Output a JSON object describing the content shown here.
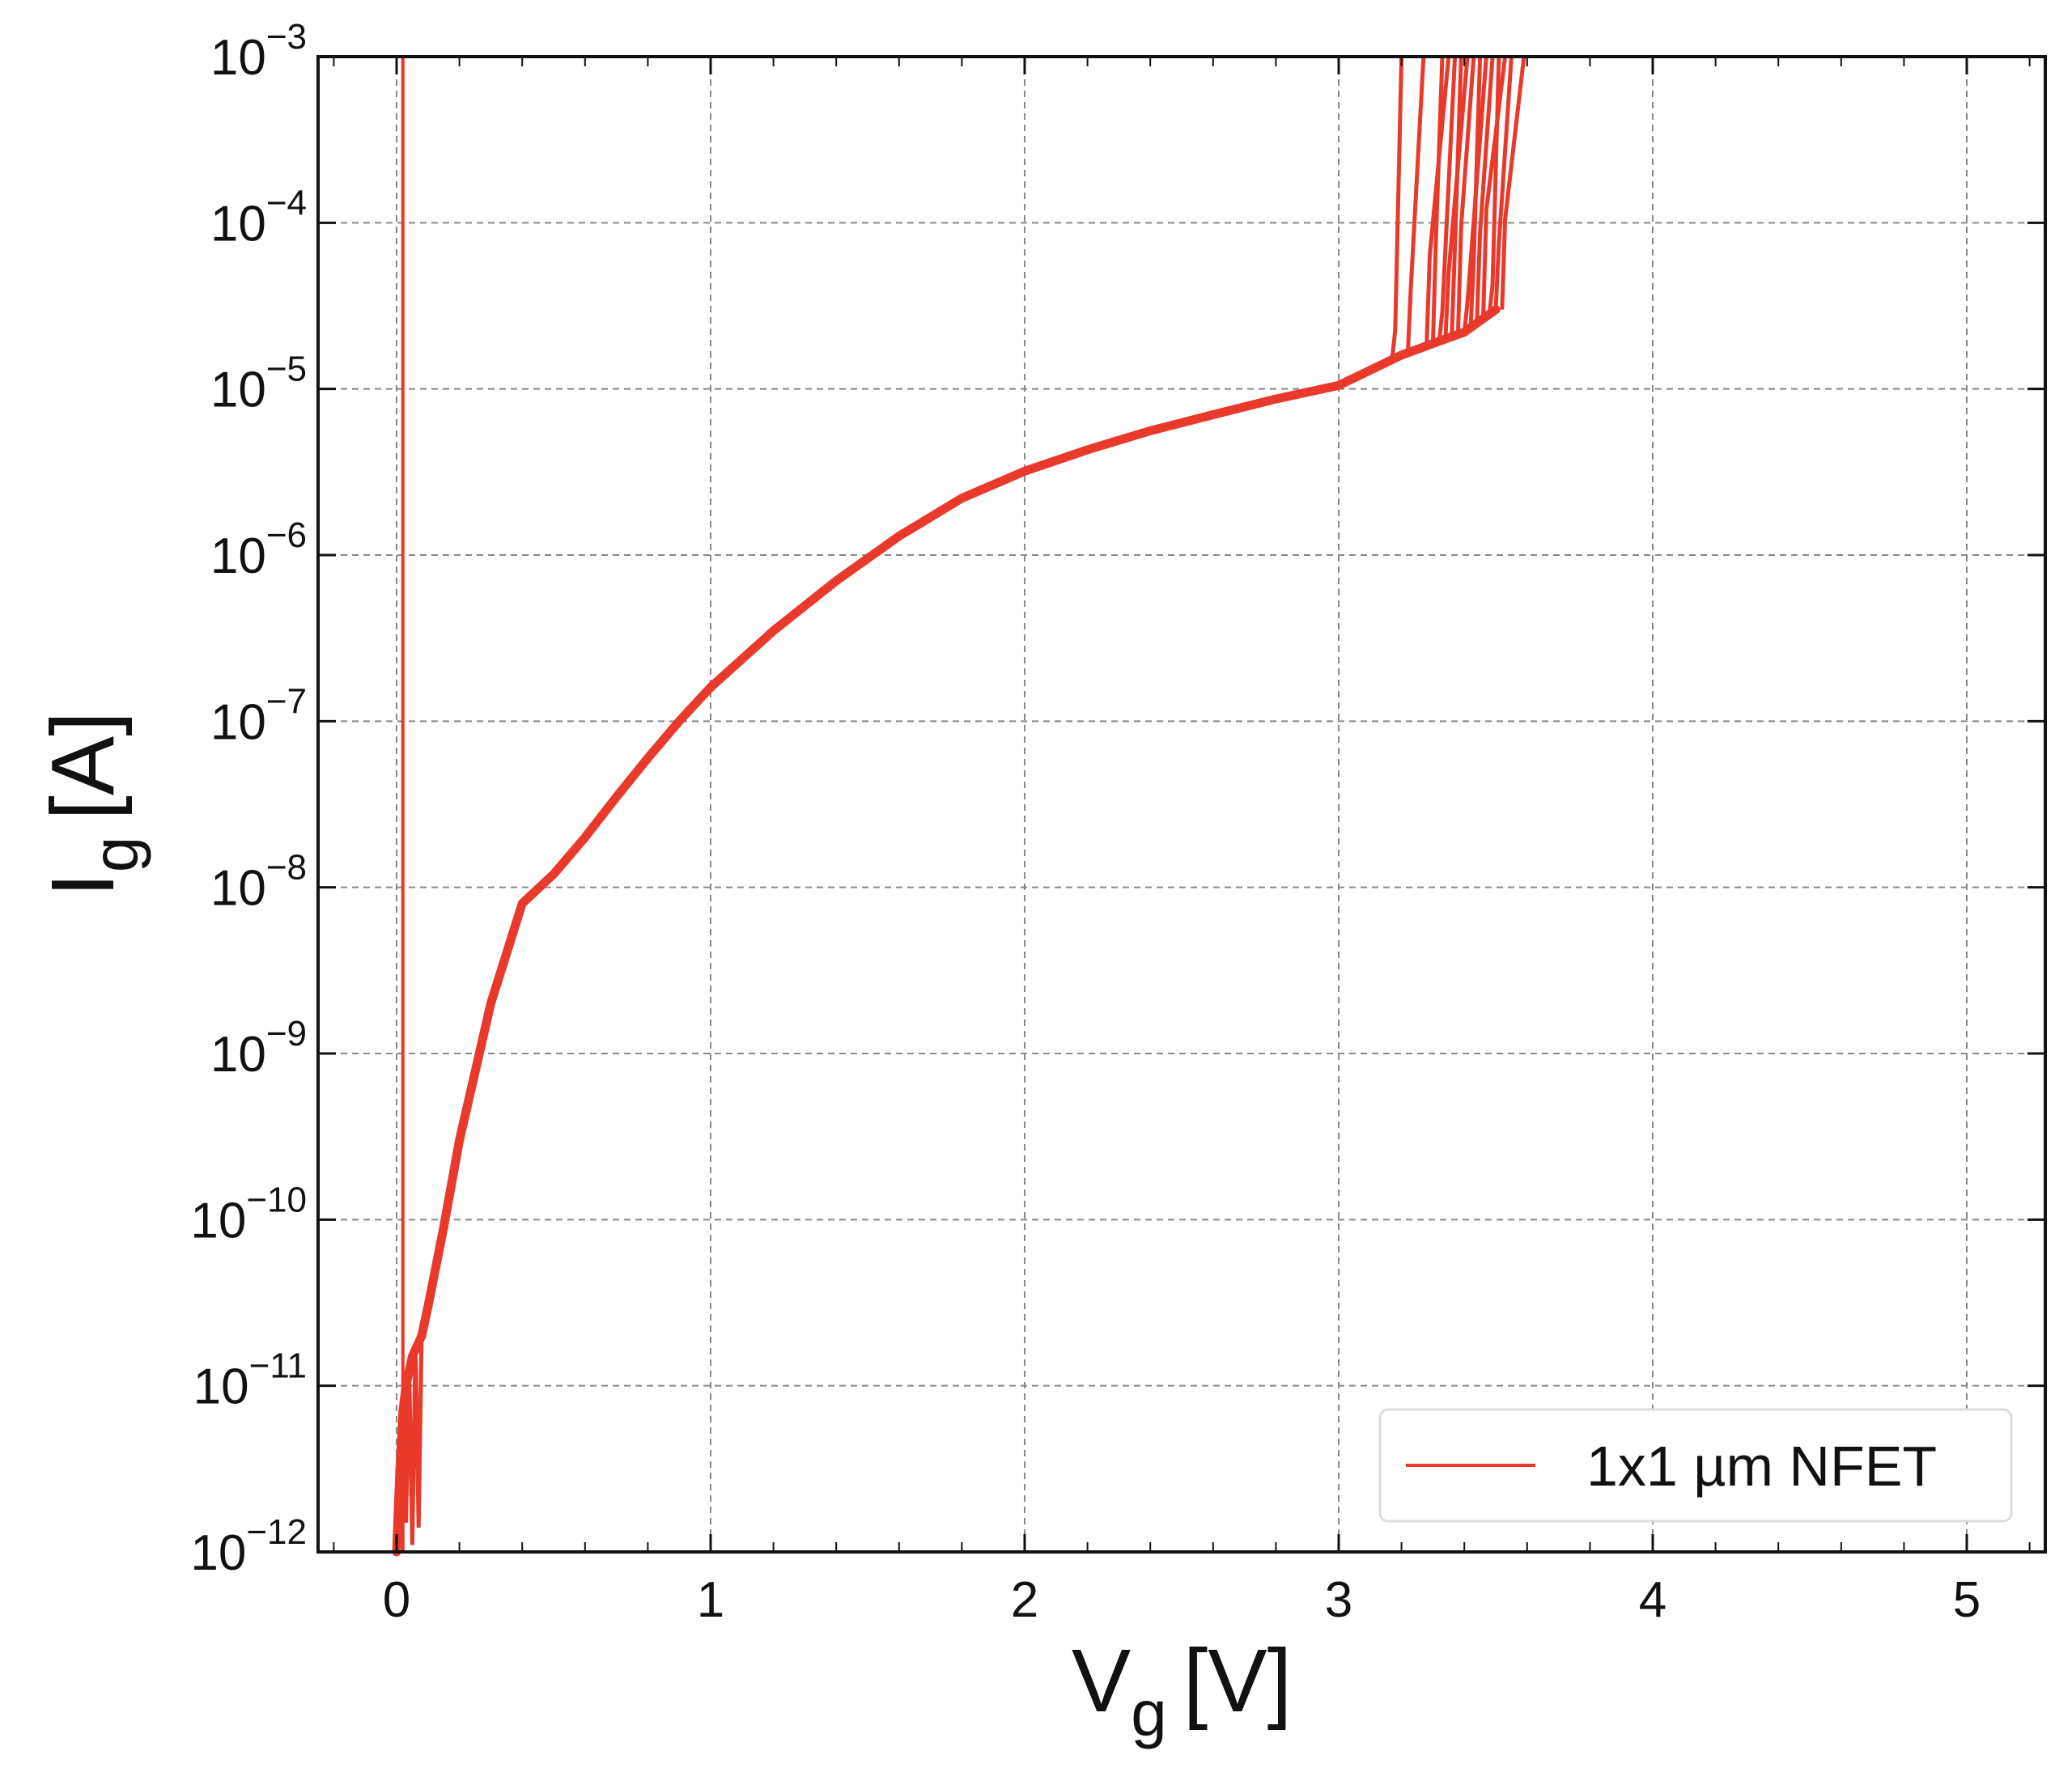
{
  "chart_data": {
    "type": "line",
    "title": "",
    "xlabel": {
      "main": "V",
      "sub": "g",
      "unit": "[V]"
    },
    "ylabel": {
      "main": "I",
      "sub": "g",
      "unit": "[A]"
    },
    "x_scale": "linear",
    "y_scale": "log",
    "xlim": [
      -0.25,
      5.25
    ],
    "ylim": [
      1e-12,
      0.001
    ],
    "x_ticks": [
      {
        "value": 0,
        "label": "0"
      },
      {
        "value": 1,
        "label": "1"
      },
      {
        "value": 2,
        "label": "2"
      },
      {
        "value": 3,
        "label": "3"
      },
      {
        "value": 4,
        "label": "4"
      },
      {
        "value": 5,
        "label": "5"
      }
    ],
    "y_ticks": [
      {
        "value": 1e-12,
        "base": "10",
        "exp": "−12"
      },
      {
        "value": 1e-11,
        "base": "10",
        "exp": "−11"
      },
      {
        "value": 1e-10,
        "base": "10",
        "exp": "−10"
      },
      {
        "value": 1e-09,
        "base": "10",
        "exp": "−9"
      },
      {
        "value": 1e-08,
        "base": "10",
        "exp": "−8"
      },
      {
        "value": 1e-07,
        "base": "10",
        "exp": "−7"
      },
      {
        "value": 1e-06,
        "base": "10",
        "exp": "−6"
      },
      {
        "value": 1e-05,
        "base": "10",
        "exp": "−5"
      },
      {
        "value": 0.0001,
        "base": "10",
        "exp": "−4"
      },
      {
        "value": 0.001,
        "base": "10",
        "exp": "−3"
      }
    ],
    "grid": true,
    "legend": {
      "location": "lower-right",
      "entries": [
        "1x1 µm NFET"
      ]
    },
    "series": [
      {
        "name": "1x1 µm NFET",
        "color": "#e8392b",
        "x": [
          0.0,
          0.01,
          0.02,
          0.03,
          0.05,
          0.08,
          0.1,
          0.15,
          0.2,
          0.3,
          0.4,
          0.5,
          0.6,
          0.7,
          0.8,
          0.9,
          1.0,
          1.2,
          1.4,
          1.6,
          1.8,
          2.0,
          2.2,
          2.4,
          2.6,
          2.8,
          3.0,
          3.2,
          3.4,
          3.5
        ],
        "y": [
          1e-12,
          3e-12,
          7e-12,
          1e-11,
          1.5e-11,
          2e-11,
          3e-11,
          9e-11,
          3e-10,
          2e-09,
          8e-09,
          1.2e-08,
          2e-08,
          3.5e-08,
          6e-08,
          1e-07,
          1.6e-07,
          3.5e-07,
          7e-07,
          1.3e-06,
          2.2e-06,
          3.2e-06,
          4.3e-06,
          5.6e-06,
          7e-06,
          8.7e-06,
          1.05e-05,
          1.6e-05,
          2.2e-05,
          3e-05
        ]
      }
    ],
    "breakdown_x": [
      3.17,
      3.22,
      3.28,
      3.3,
      3.32,
      3.34,
      3.36,
      3.38,
      3.4,
      3.42,
      3.44,
      3.46,
      3.48,
      3.5,
      3.52
    ],
    "vertical_trace_x": 0.02
  },
  "colors": {
    "curve": "#e8392b",
    "grid": "#888888",
    "axis": "#111111",
    "legend_border": "#dddddd"
  }
}
